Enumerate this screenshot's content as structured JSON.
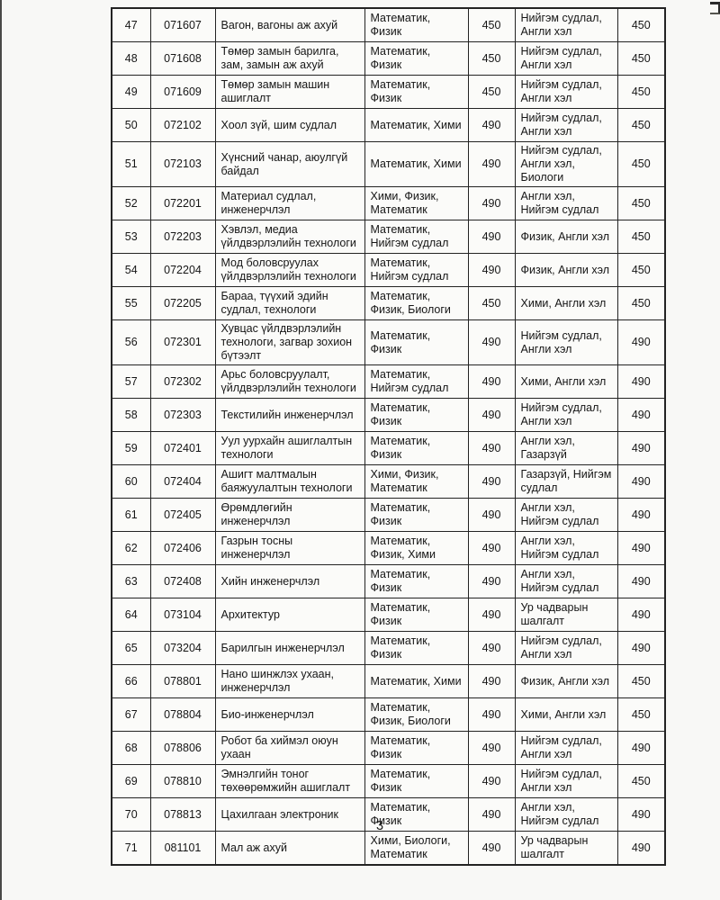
{
  "page": {
    "number": "3"
  },
  "table": {
    "rows": [
      {
        "no": "47",
        "code": "071607",
        "name": "Вагон, вагоны аж ахуй",
        "subjects1": "Математик, Физик",
        "score1": "450",
        "subjects2": "Нийгэм судлал, Англи хэл",
        "score2": "450"
      },
      {
        "no": "48",
        "code": "071608",
        "name": "Төмөр замын барилга, зам, замын аж ахуй",
        "subjects1": "Математик, Физик",
        "score1": "450",
        "subjects2": "Нийгэм судлал, Англи хэл",
        "score2": "450"
      },
      {
        "no": "49",
        "code": "071609",
        "name": "Төмөр замын машин ашиглалт",
        "subjects1": "Математик, Физик",
        "score1": "450",
        "subjects2": "Нийгэм судлал, Англи хэл",
        "score2": "450"
      },
      {
        "no": "50",
        "code": "072102",
        "name": "Хоол зүй, шим судлал",
        "subjects1": "Математик, Хими",
        "score1": "490",
        "subjects2": "Нийгэм судлал, Англи хэл",
        "score2": "450"
      },
      {
        "no": "51",
        "code": "072103",
        "name": "Хүнсний чанар, аюулгүй байдал",
        "subjects1": "Математик, Хими",
        "score1": "490",
        "subjects2": "Нийгэм судлал, Англи хэл, Биологи",
        "score2": "450"
      },
      {
        "no": "52",
        "code": "072201",
        "name": "Материал судлал, инженерчлэл",
        "subjects1": "Хими, Физик, Математик",
        "score1": "490",
        "subjects2": "Англи хэл, Нийгэм судлал",
        "score2": "450"
      },
      {
        "no": "53",
        "code": "072203",
        "name": "Хэвлэл, медиа үйлдвэрлэлийн технологи",
        "subjects1": "Математик, Нийгэм судлал",
        "score1": "490",
        "subjects2": "Физик, Англи хэл",
        "score2": "450"
      },
      {
        "no": "54",
        "code": "072204",
        "name": "Мод боловсруулах үйлдвэрлэлийн технологи",
        "subjects1": "Математик, Нийгэм судлал",
        "score1": "490",
        "subjects2": "Физик, Англи хэл",
        "score2": "450"
      },
      {
        "no": "55",
        "code": "072205",
        "name": "Бараа, түүхий эдийн судлал, технологи",
        "subjects1": "Математик, Физик, Биологи",
        "score1": "450",
        "subjects2": "Хими, Англи хэл",
        "score2": "450"
      },
      {
        "no": "56",
        "code": "072301",
        "name": "Хувцас үйлдвэрлэлийн технологи, загвар зохион бүтээлт",
        "subjects1": "Математик, Физик",
        "score1": "490",
        "subjects2": "Нийгэм судлал, Англи хэл",
        "score2": "490"
      },
      {
        "no": "57",
        "code": "072302",
        "name": "Арьс боловсруулалт, үйлдвэрлэлийн технологи",
        "subjects1": "Математик, Нийгэм судлал",
        "score1": "490",
        "subjects2": "Хими, Англи хэл",
        "score2": "490"
      },
      {
        "no": "58",
        "code": "072303",
        "name": "Текстилийн инженерчлэл",
        "subjects1": "Математик, Физик",
        "score1": "490",
        "subjects2": "Нийгэм судлал, Англи хэл",
        "score2": "490"
      },
      {
        "no": "59",
        "code": "072401",
        "name": "Уул уурхайн ашиглалтын технологи",
        "subjects1": "Математик, Физик",
        "score1": "490",
        "subjects2": "Англи хэл, Газарзүй",
        "score2": "490"
      },
      {
        "no": "60",
        "code": "072404",
        "name": "Ашигт малтмалын баяжуулалтын технологи",
        "subjects1": "Хими, Физик, Математик",
        "score1": "490",
        "subjects2": "Газарзүй, Нийгэм судлал",
        "score2": "490"
      },
      {
        "no": "61",
        "code": "072405",
        "name": "Өрөмдлөгийн инженерчлэл",
        "subjects1": "Математик, Физик",
        "score1": "490",
        "subjects2": "Англи хэл, Нийгэм судлал",
        "score2": "490"
      },
      {
        "no": "62",
        "code": "072406",
        "name": "Газрын тосны инженерчлэл",
        "subjects1": "Математик, Физик, Хими",
        "score1": "490",
        "subjects2": "Англи хэл, Нийгэм судлал",
        "score2": "490"
      },
      {
        "no": "63",
        "code": "072408",
        "name": "Хийн инженерчлэл",
        "subjects1": "Математик, Физик",
        "score1": "490",
        "subjects2": "Англи хэл, Нийгэм судлал",
        "score2": "490"
      },
      {
        "no": "64",
        "code": "073104",
        "name": "Архитектур",
        "subjects1": "Математик, Физик",
        "score1": "490",
        "subjects2": "Ур чадварын шалгалт",
        "score2": "490"
      },
      {
        "no": "65",
        "code": "073204",
        "name": "Барилгын инженерчлэл",
        "subjects1": "Математик, Физик",
        "score1": "490",
        "subjects2": "Нийгэм судлал, Англи хэл",
        "score2": "490"
      },
      {
        "no": "66",
        "code": "078801",
        "name": "Нано шинжлэх ухаан, инженерчлэл",
        "subjects1": "Математик, Хими",
        "score1": "490",
        "subjects2": "Физик, Англи хэл",
        "score2": "450"
      },
      {
        "no": "67",
        "code": "078804",
        "name": "Био-инженерчлэл",
        "subjects1": "Математик, Физик, Биологи",
        "score1": "490",
        "subjects2": "Хими, Англи хэл",
        "score2": "450"
      },
      {
        "no": "68",
        "code": "078806",
        "name": "Робот ба хиймэл оюун ухаан",
        "subjects1": "Математик, Физик",
        "score1": "490",
        "subjects2": "Нийгэм судлал, Англи хэл",
        "score2": "490"
      },
      {
        "no": "69",
        "code": "078810",
        "name": "Эмнэлгийн тоног төхөөрөмжийн ашиглалт",
        "subjects1": "Математик, Физик",
        "score1": "490",
        "subjects2": "Нийгэм судлал, Англи хэл",
        "score2": "450"
      },
      {
        "no": "70",
        "code": "078813",
        "name": "Цахилгаан электроник",
        "subjects1": "Математик, Физик",
        "score1": "490",
        "subjects2": "Англи хэл, Нийгэм судлал",
        "score2": "490"
      },
      {
        "no": "71",
        "code": "081101",
        "name": "Мал аж ахуй",
        "subjects1": "Хими, Биологи, Математик",
        "score1": "490",
        "subjects2": "Ур чадварын шалгалт",
        "score2": "490"
      }
    ]
  }
}
